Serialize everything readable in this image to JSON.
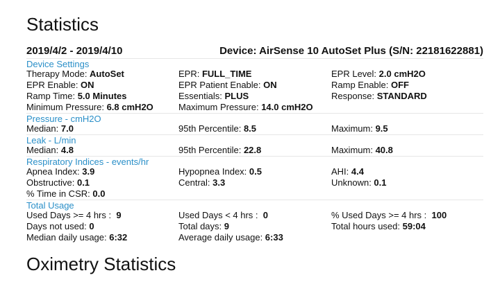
{
  "title": "Statistics",
  "date_range": "2019/4/2 - 2019/4/10",
  "device": "Device: AirSense 10 AutoSet Plus (S/N: 22181622881)",
  "device_settings": {
    "title": "Device Settings",
    "therapy_mode": {
      "label": "Therapy Mode: ",
      "value": "AutoSet"
    },
    "epr": {
      "label": "EPR: ",
      "value": "FULL_TIME"
    },
    "epr_level": {
      "label": "EPR Level: ",
      "value": "2.0 cmH2O"
    },
    "epr_enable": {
      "label": "EPR Enable: ",
      "value": "ON"
    },
    "epr_patient_enable": {
      "label": "EPR Patient Enable: ",
      "value": "ON"
    },
    "ramp_enable": {
      "label": "Ramp Enable: ",
      "value": "OFF"
    },
    "ramp_time": {
      "label": "Ramp Time: ",
      "value": "5.0 Minutes"
    },
    "essentials": {
      "label": "Essentials: ",
      "value": "PLUS"
    },
    "response": {
      "label": "Response: ",
      "value": "STANDARD"
    },
    "min_pressure": {
      "label": "Minimum Pressure: ",
      "value": "6.8 cmH2O"
    },
    "max_pressure": {
      "label": "Maximum Pressure: ",
      "value": "14.0 cmH2O"
    }
  },
  "pressure": {
    "title": "Pressure - cmH2O",
    "median": {
      "label": "Median: ",
      "value": "7.0"
    },
    "p95": {
      "label": "95th Percentile: ",
      "value": "8.5"
    },
    "maximum": {
      "label": "Maximum: ",
      "value": "9.5"
    }
  },
  "leak": {
    "title": "Leak - L/min",
    "median": {
      "label": "Median: ",
      "value": "4.8"
    },
    "p95": {
      "label": "95th Percentile: ",
      "value": "22.8"
    },
    "maximum": {
      "label": "Maximum: ",
      "value": "40.8"
    }
  },
  "respiratory": {
    "title": "Respiratory Indices - events/hr",
    "apnea": {
      "label": "Apnea Index: ",
      "value": "3.9"
    },
    "hypopnea": {
      "label": "Hypopnea Index: ",
      "value": "0.5"
    },
    "ahi": {
      "label": "AHI: ",
      "value": "4.4"
    },
    "obstructive": {
      "label": "Obstructive: ",
      "value": "0.1"
    },
    "central": {
      "label": "Central: ",
      "value": "3.3"
    },
    "unknown": {
      "label": "Unknown: ",
      "value": "0.1"
    },
    "csr": {
      "label": "% Time in CSR: ",
      "value": "0.0"
    }
  },
  "usage": {
    "title": "Total Usage",
    "used_ge4": {
      "label": "Used Days >= 4 hrs :  ",
      "value": "9"
    },
    "used_lt4": {
      "label": "Used Days < 4 hrs :  ",
      "value": "0"
    },
    "pct_used_ge4": {
      "label": "% Used Days >= 4 hrs :  ",
      "value": "100"
    },
    "days_not_used": {
      "label": "Days not used: ",
      "value": "0"
    },
    "total_days": {
      "label": "Total days: ",
      "value": "9"
    },
    "total_hours": {
      "label": "Total hours used: ",
      "value": "59:04"
    },
    "median_daily": {
      "label": "Median daily usage: ",
      "value": "6:32"
    },
    "avg_daily": {
      "label": "Average daily usage: ",
      "value": "6:33"
    }
  },
  "oximetry_title": "Oximetry Statistics"
}
